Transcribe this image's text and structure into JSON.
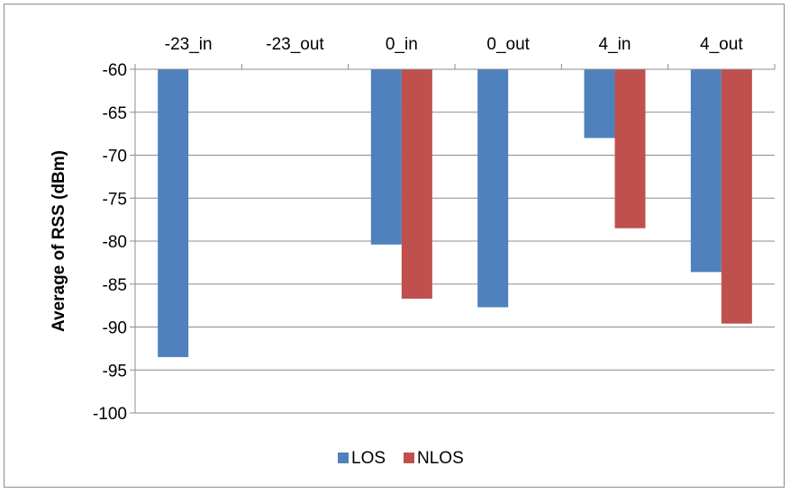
{
  "chart_data": {
    "type": "bar",
    "title": "",
    "xlabel": "",
    "ylabel": "Average of RSS (dBm)",
    "categories": [
      "-23_in",
      "-23_out",
      "0_in",
      "0_out",
      "4_in",
      "4_out"
    ],
    "series": [
      {
        "name": "LOS",
        "color": "#4f81bd",
        "values": [
          -93.5,
          null,
          -80.4,
          -87.7,
          -68.0,
          -83.6
        ]
      },
      {
        "name": "NLOS",
        "color": "#c0504d",
        "values": [
          null,
          null,
          -86.7,
          null,
          -78.5,
          -89.6
        ]
      }
    ],
    "ylim": [
      -100,
      -60
    ],
    "y_ticks": [
      -60,
      -65,
      -70,
      -75,
      -80,
      -85,
      -90,
      -95,
      -100
    ],
    "y_axis_inverted": true,
    "category_axis_position": "top",
    "grid": true,
    "legend_position": "bottom"
  }
}
